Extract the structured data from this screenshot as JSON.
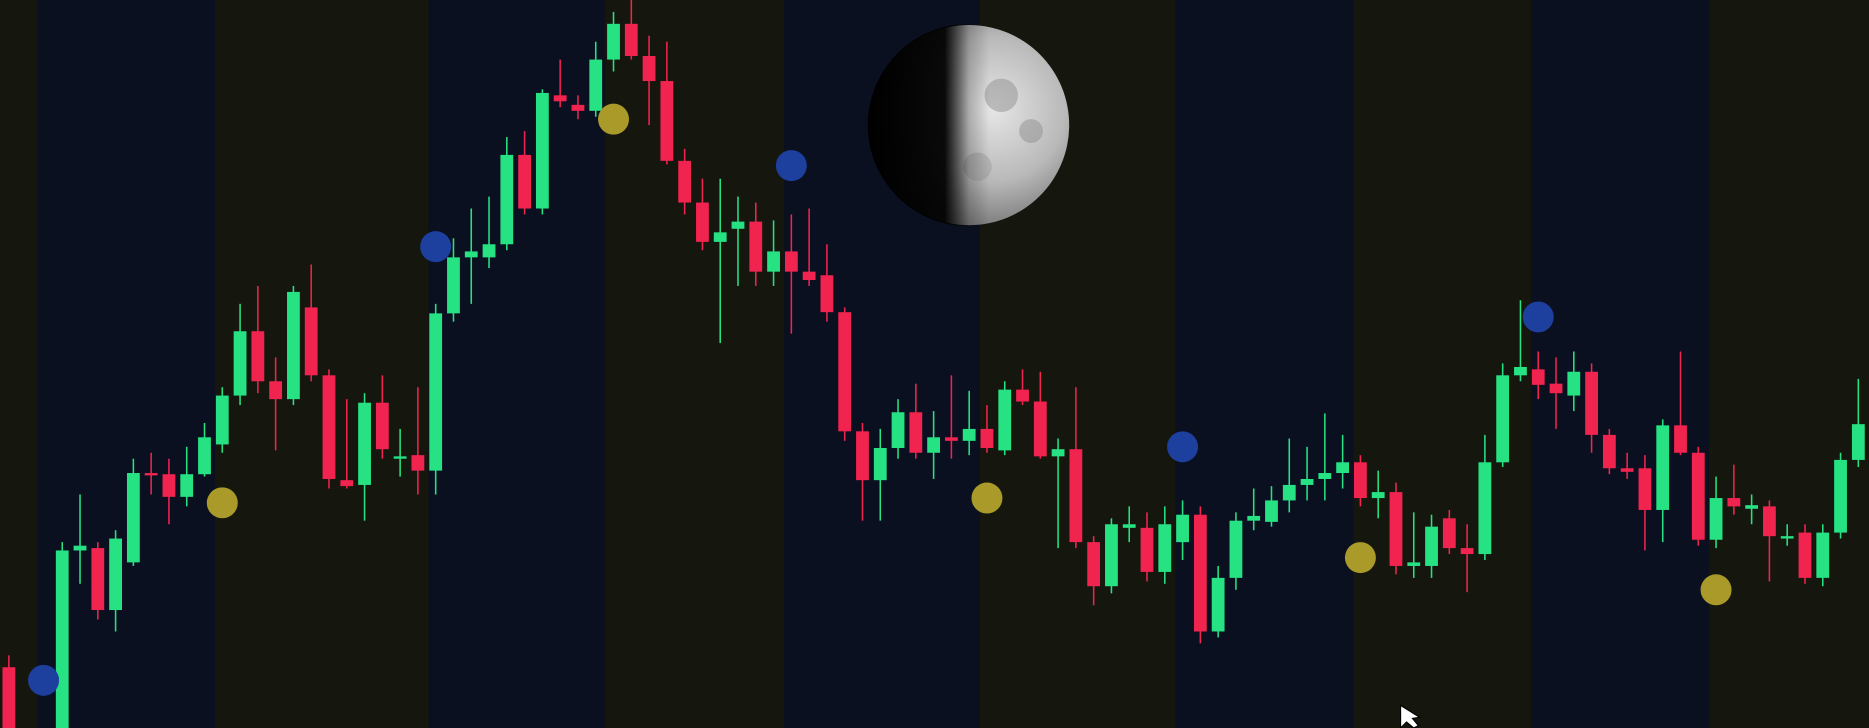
{
  "chart_data": {
    "type": "candlestick",
    "x": [
      0,
      1,
      2,
      3,
      4,
      5,
      6,
      7,
      8,
      9,
      10,
      11,
      12,
      13,
      14,
      15,
      16,
      17,
      18,
      19,
      20,
      21,
      22,
      23,
      24,
      25,
      26,
      27,
      28,
      29,
      30,
      31,
      32,
      33,
      34,
      35,
      36,
      37,
      38,
      39,
      40,
      41,
      42,
      43,
      44,
      45,
      46,
      47,
      48,
      49,
      50,
      51,
      52,
      53,
      54,
      55,
      56,
      57,
      58,
      59,
      60,
      61,
      62,
      63,
      64,
      65,
      66,
      67,
      68,
      69,
      70,
      71,
      72,
      73,
      74,
      75,
      76,
      77,
      78,
      79,
      80,
      81,
      82,
      83,
      84,
      85,
      86,
      87,
      88,
      89,
      90,
      91,
      92,
      93,
      94,
      95,
      96,
      97,
      98,
      99,
      100,
      101,
      102,
      103,
      104
    ],
    "open": [
      51,
      null,
      null,
      0,
      149,
      151,
      99,
      139,
      214,
      213,
      194,
      213,
      238,
      279,
      333,
      291,
      276,
      353,
      296,
      208,
      204,
      273,
      226,
      229,
      216,
      348,
      395,
      395,
      406,
      481,
      436,
      531,
      523,
      518,
      561,
      591,
      564,
      543,
      476,
      441,
      408,
      419,
      425,
      383,
      400,
      383,
      380,
      349,
      249,
      208,
      235,
      265,
      231,
      244,
      241,
      251,
      233,
      284,
      274,
      228,
      234,
      156,
      119,
      168,
      168,
      131,
      156,
      179,
      81,
      126,
      174,
      173,
      191,
      204,
      209,
      214,
      223,
      193,
      198,
      136,
      136,
      176,
      151,
      146,
      223,
      296,
      301,
      289,
      279,
      299,
      246,
      218,
      218,
      183,
      254,
      231,
      158,
      193,
      184,
      186,
      159,
      164,
      126,
      164,
      225
    ],
    "high": [
      61,
      null,
      null,
      156,
      196,
      156,
      166,
      226,
      231,
      226,
      236,
      256,
      286,
      356,
      371,
      311,
      371,
      389,
      301,
      276,
      281,
      296,
      251,
      286,
      356,
      411,
      436,
      446,
      496,
      501,
      536,
      561,
      531,
      576,
      601,
      611,
      581,
      576,
      486,
      461,
      461,
      446,
      441,
      426,
      431,
      436,
      406,
      353,
      256,
      251,
      276,
      289,
      266,
      296,
      283,
      271,
      291,
      301,
      299,
      243,
      286,
      161,
      176,
      186,
      181,
      186,
      191,
      186,
      136,
      181,
      201,
      203,
      243,
      236,
      264,
      246,
      229,
      216,
      206,
      181,
      179,
      183,
      171,
      246,
      306,
      359,
      316,
      311,
      316,
      306,
      251,
      231,
      229,
      259,
      316,
      236,
      211,
      221,
      196,
      191,
      171,
      171,
      171,
      231,
      293
    ],
    "low": [
      0,
      null,
      null,
      0,
      121,
      91,
      81,
      136,
      196,
      171,
      186,
      211,
      231,
      271,
      281,
      233,
      271,
      291,
      201,
      201,
      174,
      226,
      211,
      196,
      196,
      341,
      356,
      386,
      401,
      431,
      431,
      521,
      511,
      513,
      551,
      561,
      506,
      473,
      431,
      401,
      323,
      371,
      371,
      371,
      331,
      371,
      341,
      241,
      174,
      174,
      226,
      226,
      209,
      226,
      229,
      231,
      229,
      271,
      226,
      151,
      151,
      103,
      113,
      156,
      123,
      121,
      141,
      71,
      76,
      116,
      166,
      169,
      181,
      191,
      191,
      201,
      186,
      176,
      129,
      126,
      126,
      146,
      114,
      141,
      219,
      291,
      276,
      251,
      266,
      231,
      213,
      209,
      149,
      156,
      229,
      153,
      151,
      179,
      171,
      123,
      153,
      121,
      119,
      159,
      219
    ],
    "close": [
      0,
      null,
      null,
      149,
      153,
      99,
      159,
      214,
      212,
      194,
      213,
      244,
      279,
      333,
      291,
      276,
      366,
      296,
      209,
      203,
      273,
      234,
      228,
      216,
      348,
      395,
      400,
      406,
      481,
      436,
      533,
      526,
      518,
      561,
      591,
      564,
      543,
      476,
      441,
      408,
      416,
      425,
      383,
      400,
      383,
      376,
      349,
      249,
      208,
      235,
      265,
      231,
      244,
      241,
      251,
      235,
      284,
      274,
      228,
      234,
      156,
      119,
      171,
      171,
      131,
      171,
      179,
      81,
      126,
      174,
      178,
      191,
      204,
      209,
      214,
      223,
      193,
      198,
      136,
      139,
      169,
      151,
      146,
      223,
      296,
      303,
      288,
      281,
      299,
      246,
      218,
      215,
      183,
      254,
      231,
      158,
      193,
      186,
      187,
      161,
      161,
      126,
      164,
      225,
      255
    ],
    "up_color": "#27e283",
    "down_color": "#f1234f",
    "xlim": [
      -0.5,
      104.6
    ],
    "ylim": [
      0,
      611
    ],
    "markers": [
      {
        "color": "#1d3f9e",
        "x": [
          1.95,
          24.0,
          44.0,
          66.0,
          86.0
        ],
        "values": [
          40,
          404,
          472,
          236,
          345
        ]
      },
      {
        "color": "#a99a2a",
        "x": [
          12.0,
          34.0,
          55.0,
          76.0,
          96.0
        ],
        "values": [
          189,
          511,
          193,
          143,
          116
        ]
      }
    ],
    "bands": {
      "edges": [
        1.6,
        11.6,
        23.6,
        33.5,
        43.6,
        54.6,
        65.6,
        75.6,
        85.6,
        95.6
      ],
      "colors": [
        "#15170f",
        "#0a1020"
      ]
    }
  }
}
